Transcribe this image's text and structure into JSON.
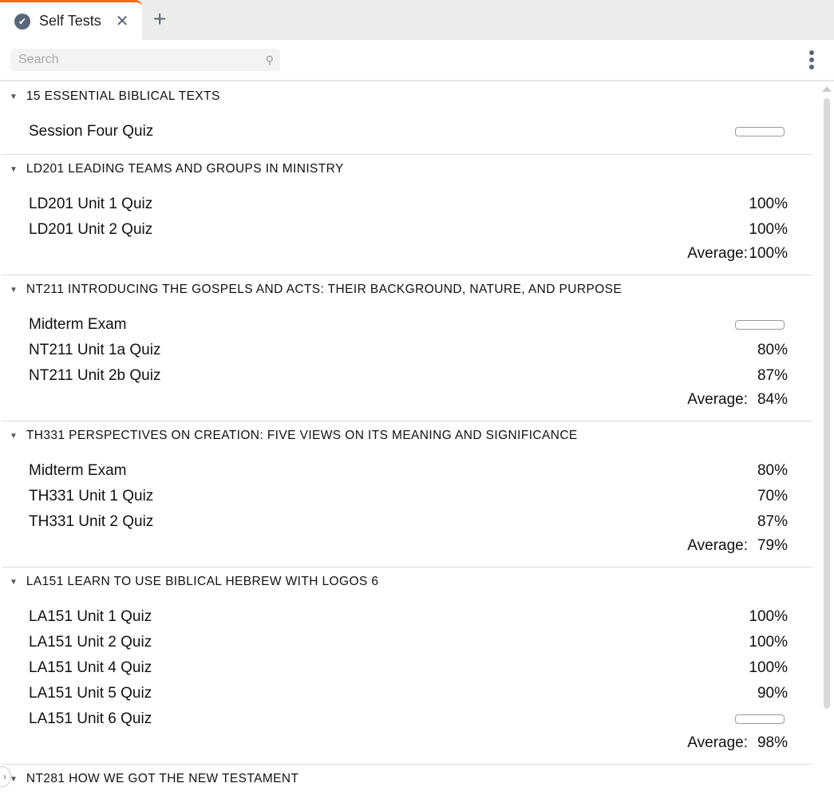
{
  "tab": {
    "label": "Self Tests",
    "icon": "check-badge-icon",
    "accent": "#f26b1d"
  },
  "search": {
    "placeholder": "Search",
    "value": ""
  },
  "sections": [
    {
      "title": "15 ESSENTIAL BIBLICAL TEXTS",
      "items": [
        {
          "name": "Session Four Quiz",
          "score": null
        }
      ],
      "average": null
    },
    {
      "title": "LD201 LEADING TEAMS AND GROUPS IN MINISTRY",
      "items": [
        {
          "name": "LD201 Unit 1 Quiz",
          "score": "100%"
        },
        {
          "name": "LD201 Unit 2 Quiz",
          "score": "100%"
        }
      ],
      "average": "100%"
    },
    {
      "title": "NT211 INTRODUCING THE GOSPELS AND ACTS: THEIR BACKGROUND, NATURE, AND PURPOSE",
      "items": [
        {
          "name": "Midterm Exam",
          "score": null
        },
        {
          "name": "NT211 Unit 1a Quiz",
          "score": "80%"
        },
        {
          "name": "NT211 Unit 2b Quiz",
          "score": "87%"
        }
      ],
      "average": "84%"
    },
    {
      "title": "TH331 PERSPECTIVES ON CREATION: FIVE VIEWS ON ITS MEANING AND SIGNIFICANCE",
      "items": [
        {
          "name": "Midterm Exam",
          "score": "80%"
        },
        {
          "name": "TH331 Unit 1 Quiz",
          "score": "70%"
        },
        {
          "name": "TH331 Unit 2 Quiz",
          "score": "87%"
        }
      ],
      "average": "79%"
    },
    {
      "title": "LA151 LEARN TO USE BIBLICAL HEBREW WITH LOGOS 6",
      "items": [
        {
          "name": "LA151 Unit 1 Quiz",
          "score": "100%"
        },
        {
          "name": "LA151 Unit 2 Quiz",
          "score": "100%"
        },
        {
          "name": "LA151 Unit 4 Quiz",
          "score": "100%"
        },
        {
          "name": "LA151 Unit 5 Quiz",
          "score": "90%"
        },
        {
          "name": "LA151 Unit 6 Quiz",
          "score": null
        }
      ],
      "average": "98%"
    },
    {
      "title": "NT281 HOW WE GOT THE NEW TESTAMENT",
      "items": [],
      "average": null
    }
  ],
  "average_label": "Average:"
}
